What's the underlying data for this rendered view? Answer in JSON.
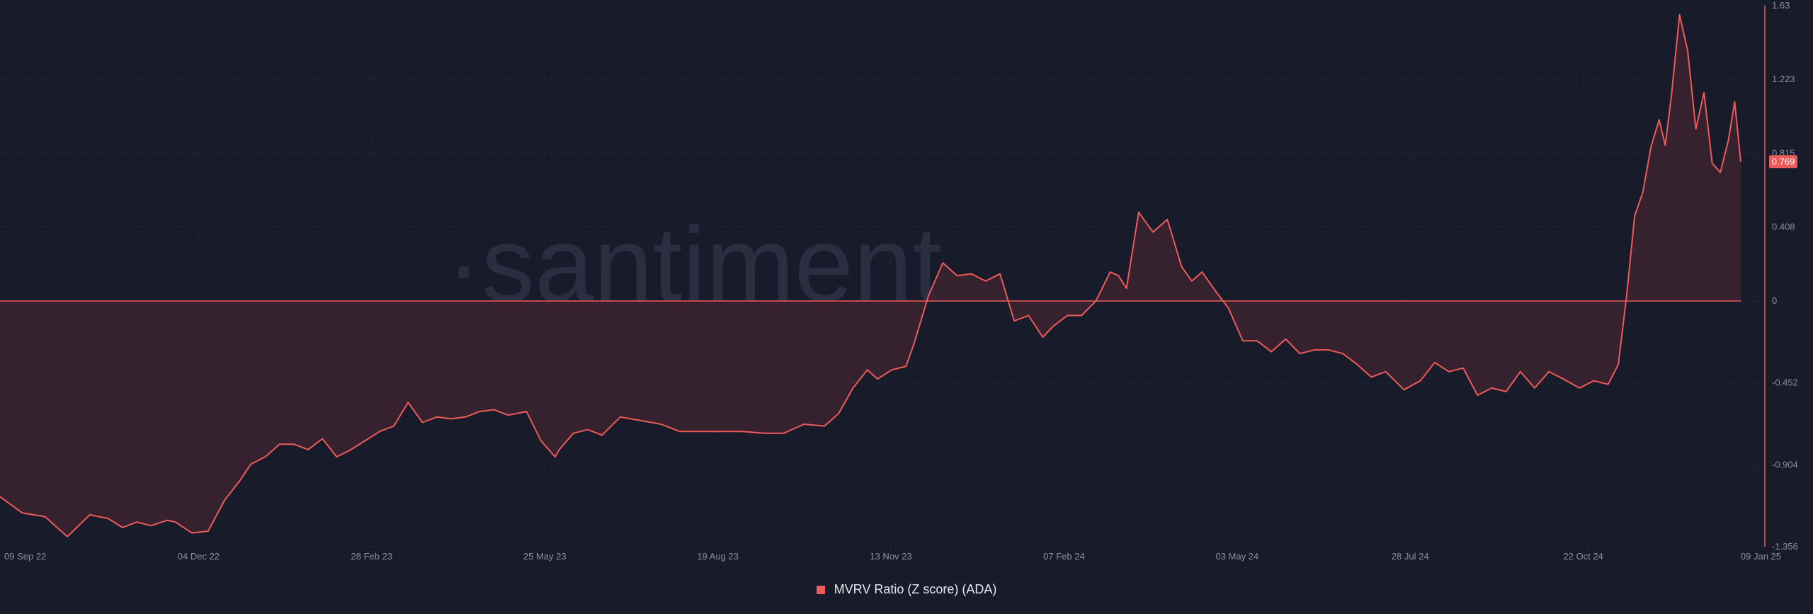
{
  "watermark": "·santiment",
  "chart_data": {
    "type": "area",
    "title": "",
    "xlabel": "",
    "ylabel": "",
    "ylim": [
      -1.356,
      1.63
    ],
    "y_ticks": [
      1.63,
      1.223,
      0.815,
      0.408,
      0,
      -0.452,
      -0.904,
      -1.356
    ],
    "x_ticks": [
      "09 Sep 22",
      "04 Dec 22",
      "28 Feb 23",
      "25 May 23",
      "19 Aug 23",
      "13 Nov 23",
      "07 Feb 24",
      "03 May 24",
      "28 Jul 24",
      "22 Oct 24",
      "09 Jan 25"
    ],
    "current_value": 0.769,
    "grid": true,
    "legend_position": "bottom",
    "colors": {
      "line": "#ee5a5a",
      "fill": "#3a2430",
      "zero_line": "#ee5a5a",
      "background": "#181b2a"
    },
    "series": [
      {
        "name": "MVRV Ratio (Z score) (ADA)",
        "x": [
          "2022-09-09",
          "2022-09-20",
          "2022-10-01",
          "2022-10-12",
          "2022-10-23",
          "2022-11-01",
          "2022-11-08",
          "2022-11-15",
          "2022-11-22",
          "2022-11-30",
          "2022-12-04",
          "2022-12-12",
          "2022-12-20",
          "2022-12-28",
          "2023-01-04",
          "2023-01-10",
          "2023-01-17",
          "2023-01-24",
          "2023-01-31",
          "2023-02-07",
          "2023-02-14",
          "2023-02-21",
          "2023-02-28",
          "2023-03-07",
          "2023-03-14",
          "2023-03-21",
          "2023-03-28",
          "2023-04-04",
          "2023-04-11",
          "2023-04-18",
          "2023-04-25",
          "2023-05-02",
          "2023-05-09",
          "2023-05-16",
          "2023-05-25",
          "2023-06-01",
          "2023-06-08",
          "2023-06-10",
          "2023-06-17",
          "2023-06-24",
          "2023-07-01",
          "2023-07-10",
          "2023-07-20",
          "2023-07-30",
          "2023-08-08",
          "2023-08-19",
          "2023-08-28",
          "2023-09-08",
          "2023-09-18",
          "2023-09-28",
          "2023-10-08",
          "2023-10-18",
          "2023-10-25",
          "2023-11-01",
          "2023-11-08",
          "2023-11-13",
          "2023-11-20",
          "2023-11-27",
          "2023-12-01",
          "2023-12-08",
          "2023-12-15",
          "2023-12-22",
          "2023-12-29",
          "2024-01-05",
          "2024-01-12",
          "2024-01-19",
          "2024-01-26",
          "2024-02-02",
          "2024-02-07",
          "2024-02-14",
          "2024-02-21",
          "2024-02-28",
          "2024-03-06",
          "2024-03-10",
          "2024-03-14",
          "2024-03-20",
          "2024-03-27",
          "2024-04-03",
          "2024-04-10",
          "2024-04-15",
          "2024-04-20",
          "2024-04-27",
          "2024-05-03",
          "2024-05-10",
          "2024-05-17",
          "2024-05-24",
          "2024-05-31",
          "2024-06-07",
          "2024-06-14",
          "2024-06-21",
          "2024-06-28",
          "2024-07-05",
          "2024-07-12",
          "2024-07-19",
          "2024-07-28",
          "2024-08-05",
          "2024-08-12",
          "2024-08-19",
          "2024-08-26",
          "2024-09-02",
          "2024-09-09",
          "2024-09-16",
          "2024-09-23",
          "2024-09-30",
          "2024-10-07",
          "2024-10-14",
          "2024-10-22",
          "2024-10-29",
          "2024-11-05",
          "2024-11-10",
          "2024-11-14",
          "2024-11-18",
          "2024-11-22",
          "2024-11-26",
          "2024-11-30",
          "2024-12-03",
          "2024-12-06",
          "2024-12-10",
          "2024-12-14",
          "2024-12-18",
          "2024-12-22",
          "2024-12-26",
          "2024-12-30",
          "2025-01-03",
          "2025-01-06",
          "2025-01-09"
        ],
        "values": [
          -1.08,
          -1.17,
          -1.19,
          -1.3,
          -1.18,
          -1.2,
          -1.25,
          -1.22,
          -1.24,
          -1.21,
          -1.22,
          -1.28,
          -1.27,
          -1.1,
          -1.0,
          -0.9,
          -0.86,
          -0.79,
          -0.79,
          -0.82,
          -0.76,
          -0.86,
          -0.82,
          -0.77,
          -0.72,
          -0.69,
          -0.56,
          -0.67,
          -0.64,
          -0.65,
          -0.64,
          -0.61,
          -0.6,
          -0.63,
          -0.61,
          -0.77,
          -0.86,
          -0.82,
          -0.73,
          -0.71,
          -0.74,
          -0.64,
          -0.66,
          -0.68,
          -0.72,
          -0.72,
          -0.72,
          -0.72,
          -0.73,
          -0.73,
          -0.68,
          -0.69,
          -0.62,
          -0.48,
          -0.38,
          -0.43,
          -0.38,
          -0.36,
          -0.23,
          0.03,
          0.21,
          0.14,
          0.15,
          0.11,
          0.15,
          -0.11,
          -0.08,
          -0.2,
          -0.14,
          -0.08,
          -0.08,
          0.0,
          0.16,
          0.14,
          0.07,
          0.49,
          0.38,
          0.45,
          0.19,
          0.11,
          0.16,
          0.05,
          -0.04,
          -0.22,
          -0.22,
          -0.28,
          -0.21,
          -0.29,
          -0.27,
          -0.27,
          -0.29,
          -0.35,
          -0.42,
          -0.39,
          -0.49,
          -0.44,
          -0.34,
          -0.39,
          -0.37,
          -0.52,
          -0.48,
          -0.5,
          -0.39,
          -0.48,
          -0.39,
          -0.43,
          -0.48,
          -0.44,
          -0.46,
          -0.35,
          0.02,
          0.47,
          0.6,
          0.85,
          1.0,
          0.86,
          1.13,
          1.58,
          1.38,
          0.95,
          1.15,
          0.76,
          0.71,
          0.89,
          1.1,
          0.769
        ]
      }
    ]
  }
}
